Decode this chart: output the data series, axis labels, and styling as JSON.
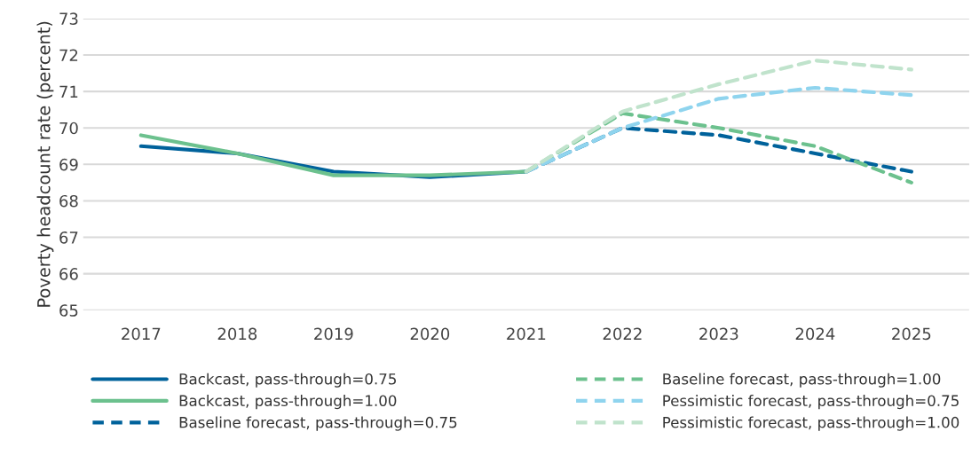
{
  "chart_data": {
    "type": "line",
    "ylabel": "Poverty headcount rate (percent)",
    "categories": [
      "2017",
      "2018",
      "2019",
      "2020",
      "2021",
      "2022",
      "2023",
      "2024",
      "2025"
    ],
    "ylim": [
      65,
      73
    ],
    "yticks": [
      65,
      66,
      67,
      68,
      69,
      70,
      71,
      72,
      73
    ],
    "grid": "y",
    "legend": "bottom",
    "marker": "none",
    "series": [
      {
        "name": "Backcast, pass-through=0.75",
        "color": "#00629b",
        "line_style": "solid",
        "values": [
          69.5,
          69.3,
          68.8,
          68.65,
          68.8,
          null,
          null,
          null,
          null
        ]
      },
      {
        "name": "Backcast, pass-through=1.00",
        "color": "#6cc18e",
        "line_style": "solid",
        "values": [
          69.8,
          69.3,
          68.7,
          68.7,
          68.8,
          null,
          null,
          null,
          null
        ]
      },
      {
        "name": "Baseline forecast, pass-through=0.75",
        "color": "#00629b",
        "line_style": "dashed",
        "values": [
          null,
          null,
          null,
          null,
          68.8,
          70.0,
          69.8,
          69.3,
          68.8
        ]
      },
      {
        "name": "Baseline forecast, pass-through=1.00",
        "color": "#6cc18e",
        "line_style": "dashed",
        "values": [
          null,
          null,
          null,
          null,
          68.8,
          70.4,
          70.0,
          69.5,
          68.5
        ]
      },
      {
        "name": "Pessimistic forecast, pass-through=0.75",
        "color": "#8fd4ee",
        "line_style": "dashed",
        "values": [
          null,
          null,
          null,
          null,
          68.8,
          70.0,
          70.8,
          71.1,
          70.9
        ]
      },
      {
        "name": "Pessimistic forecast, pass-through=1.00",
        "color": "#c0e3cc",
        "line_style": "dashed",
        "values": [
          null,
          null,
          null,
          null,
          68.8,
          70.45,
          71.2,
          71.85,
          71.6
        ]
      }
    ]
  }
}
